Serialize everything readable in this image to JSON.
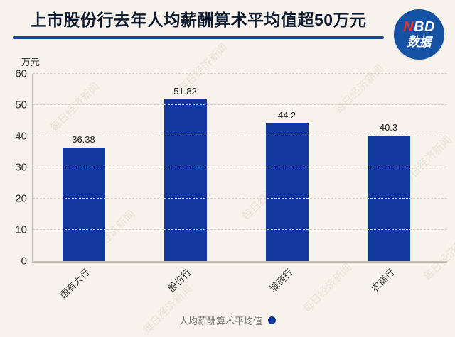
{
  "header": {
    "title": "上市股份行去年人均薪酬算术平均值超50万元",
    "underline_color": "#17498f",
    "logo": {
      "brand_red": "N",
      "brand_rest": "BD",
      "subtitle": "数据",
      "bg_color": "#1652a3",
      "accent_color": "#e5352b"
    }
  },
  "chart_data": {
    "type": "bar",
    "title": "上市股份行去年人均薪酬算术平均值超50万元",
    "unit": "万元",
    "categories": [
      "国有大行",
      "股份行",
      "城商行",
      "农商行"
    ],
    "values": [
      36.38,
      51.82,
      44.2,
      40.3
    ],
    "value_labels": [
      "36.38",
      "51.82",
      "44.2",
      "40.3"
    ],
    "xlabel": "",
    "ylabel": "万元",
    "ylim": [
      0,
      60
    ],
    "yticks": [
      0,
      10,
      20,
      30,
      40,
      50,
      60
    ],
    "grid": "horizontal-dashed",
    "bar_color": "#12389e",
    "legend": {
      "label": "人均薪酬算术平均值",
      "position": "bottom",
      "marker": "circle",
      "marker_color": "#12389e"
    }
  },
  "watermark": {
    "text": "每日经济新闻"
  }
}
